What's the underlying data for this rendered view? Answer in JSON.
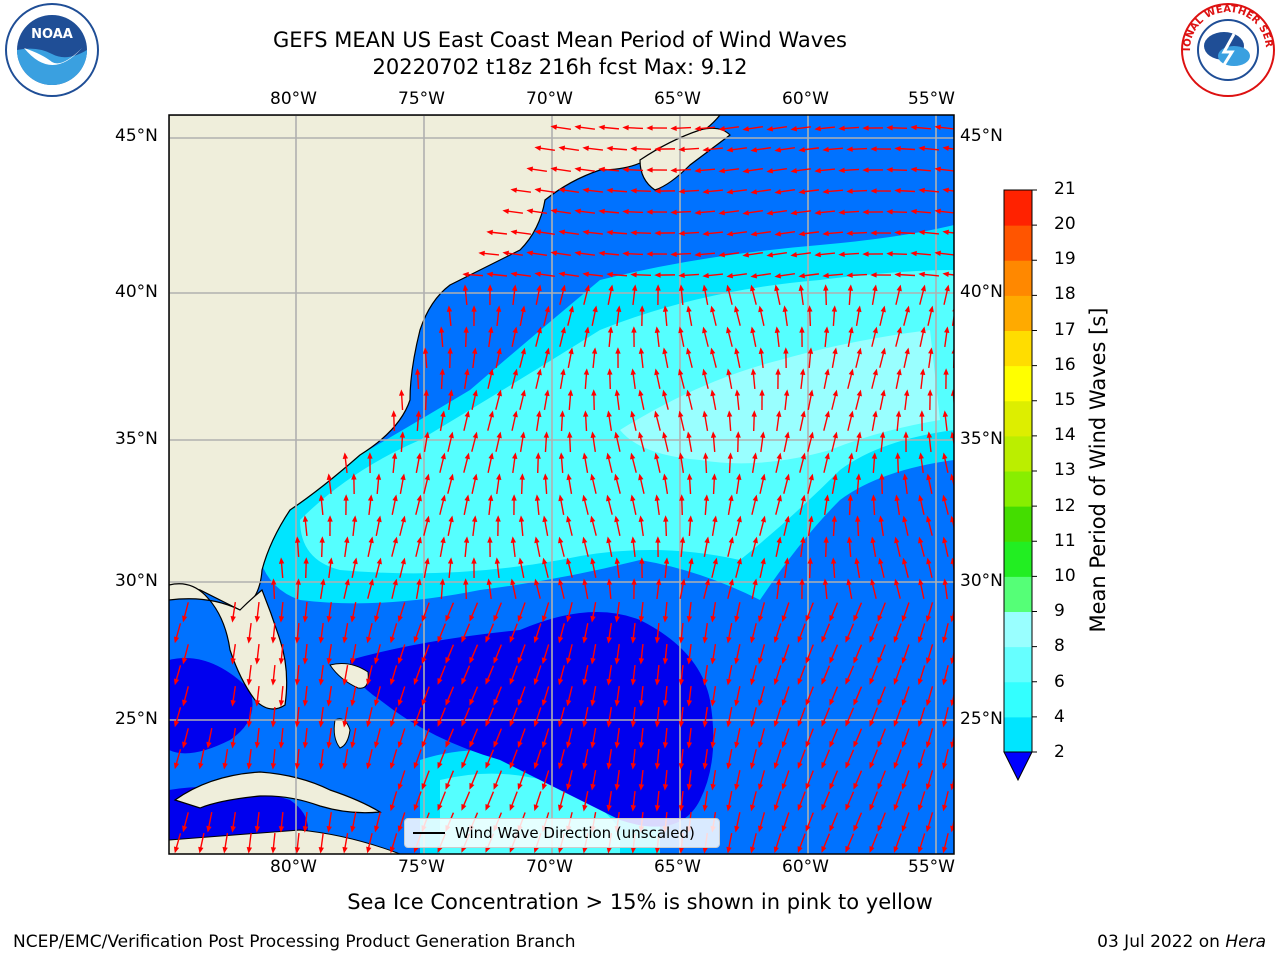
{
  "title_line1": "GEFS MEAN US East Coast Mean Period of Wind Waves",
  "title_line2": "20220702 t18z 216h fcst   Max: 9.12",
  "lon_ticks": [
    "80°W",
    "75°W",
    "70°W",
    "65°W",
    "60°W",
    "55°W"
  ],
  "lat_ticks": [
    "45°N",
    "40°N",
    "35°N",
    "30°N",
    "25°N"
  ],
  "colorbar": {
    "title": "Mean Period of Wind Waves [s]",
    "labels": [
      "2",
      "4",
      "6",
      "8",
      "9",
      "10",
      "11",
      "12",
      "13",
      "14",
      "15",
      "16",
      "17",
      "18",
      "19",
      "20",
      "21"
    ],
    "colors": [
      "#0072ff",
      "#00e5ff",
      "#33ffff",
      "#66ffff",
      "#99ffff",
      "#55ff77",
      "#22ee22",
      "#44dd00",
      "#88ee00",
      "#bbee00",
      "#ddee00",
      "#ffff00",
      "#ffdd00",
      "#ffaa00",
      "#ff8800",
      "#ff5500",
      "#ff2200",
      "#ff0000"
    ],
    "under_color": "#0000ff"
  },
  "legend_text": "Wind Wave Direction (unscaled)",
  "footer_note": "Sea Ice Concentration > 15% is shown in pink to yellow",
  "credit": "NCEP/EMC/Verification Post Processing Product Generation Branch",
  "date_prefix": "03 Jul 2022 on ",
  "date_machine": "Hera",
  "logo_left_text": "NOAA",
  "logo_right_ring_text": "NATIONAL WEATHER SERVICE",
  "colors": {
    "land": "#efeedb",
    "arrow": "#ff0000",
    "grid": "#b0b0b0"
  }
}
